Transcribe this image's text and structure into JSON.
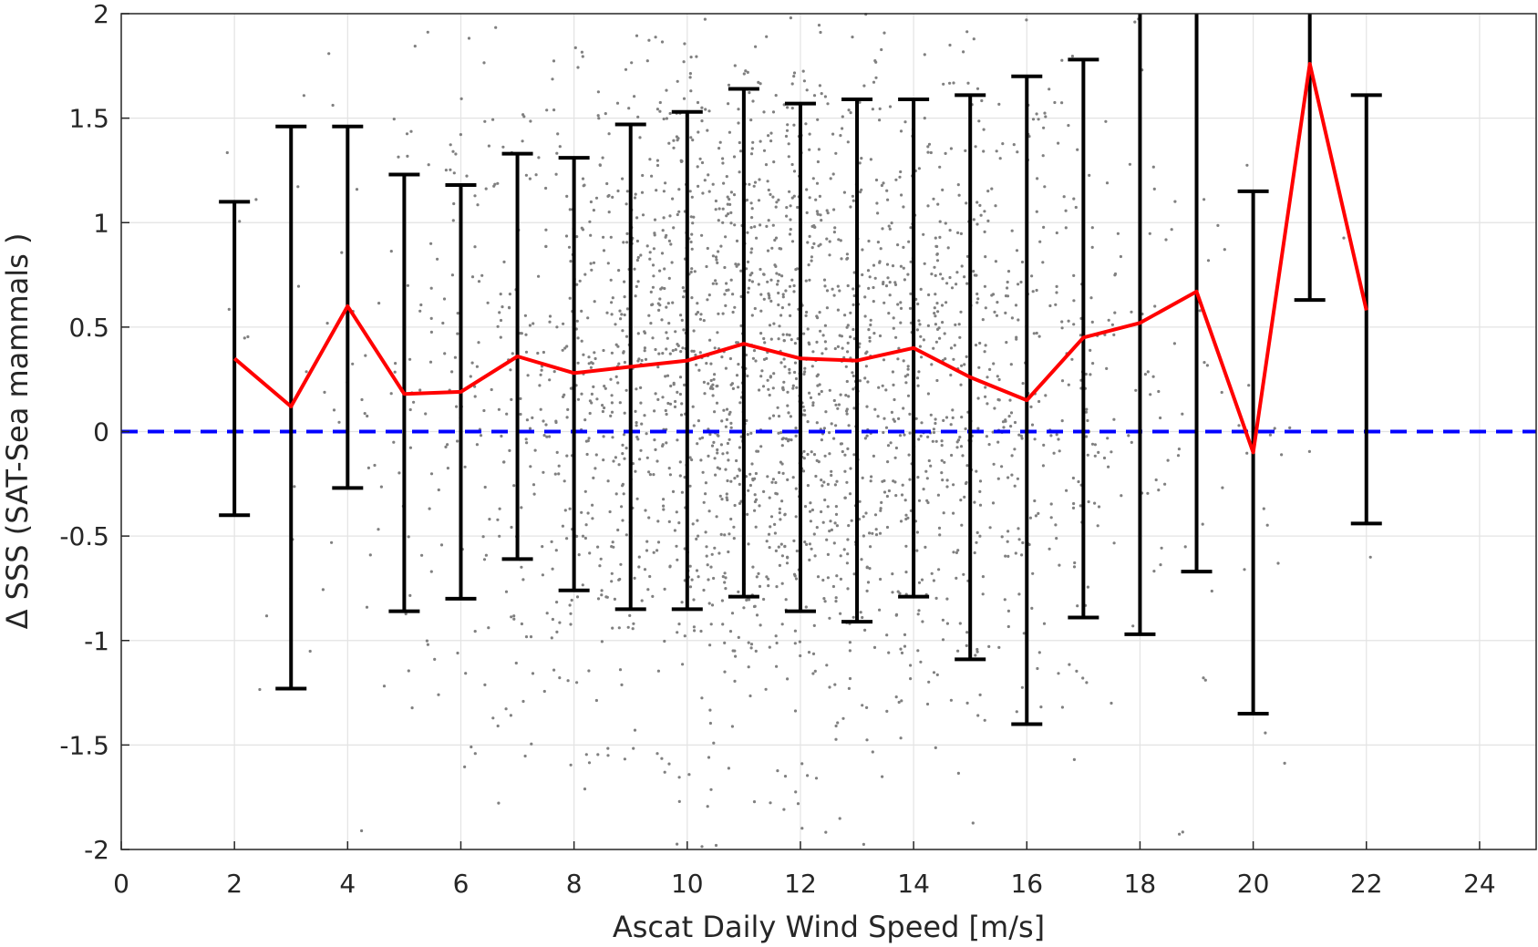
{
  "chart_data": {
    "type": "scatter",
    "xlabel": "Ascat Daily Wind Speed [m/s]",
    "ylabel": "Δ SSS (SAT-Sea mammals )",
    "xlim": [
      0,
      25
    ],
    "ylim": [
      -2,
      2
    ],
    "xticks": [
      0,
      2,
      4,
      6,
      8,
      10,
      12,
      14,
      16,
      18,
      20,
      22,
      24
    ],
    "yticks": [
      2,
      1.5,
      1,
      0.5,
      0,
      -0.5,
      -1,
      -1.5,
      -2
    ],
    "xtick_labels": [
      "0",
      "2",
      "4",
      "6",
      "8",
      "10",
      "12",
      "14",
      "16",
      "18",
      "20",
      "22",
      "24"
    ],
    "ytick_labels": [
      "2",
      "1.5",
      "1",
      "0.5",
      "0",
      "-0.5",
      "-1",
      "-1.5",
      "-2"
    ],
    "grid": true,
    "colors": {
      "mean_line": "#ff0000",
      "zero_line": "#0000ff",
      "error_bars": "#000000",
      "scatter": "#808080",
      "grid": "#e3e3e3"
    },
    "series": [
      {
        "type": "line",
        "x": [
          2,
          3,
          4,
          5,
          6,
          7,
          8,
          9,
          10,
          11,
          12,
          13,
          14,
          15,
          16,
          17,
          18,
          19,
          20,
          21,
          22
        ],
        "y": [
          0.35,
          0.12,
          0.6,
          0.18,
          0.19,
          0.36,
          0.28,
          0.31,
          0.34,
          0.42,
          0.35,
          0.34,
          0.4,
          0.26,
          0.15,
          0.45,
          0.52,
          0.67,
          -0.1,
          1.76,
          0.58
        ],
        "err_low": [
          -0.4,
          -1.23,
          -0.27,
          -0.86,
          -0.8,
          -0.61,
          -0.76,
          -0.85,
          -0.85,
          -0.79,
          -0.86,
          -0.91,
          -0.79,
          -1.09,
          -1.4,
          -0.89,
          -0.97,
          -0.67,
          -1.35,
          0.63,
          -0.44
        ],
        "err_high": [
          1.1,
          1.46,
          1.46,
          1.23,
          1.18,
          1.33,
          1.31,
          1.47,
          1.53,
          1.64,
          1.57,
          1.59,
          1.59,
          1.61,
          1.7,
          1.78,
          2.0,
          2.0,
          1.15,
          2.0,
          1.61
        ]
      },
      {
        "type": "hline",
        "y": 0,
        "style": "dashed"
      },
      {
        "type": "scatter",
        "center_x": 11.5,
        "center_y": 0.25,
        "spread_x": 3.2,
        "spread_y": 0.85,
        "count": 2600
      }
    ]
  }
}
